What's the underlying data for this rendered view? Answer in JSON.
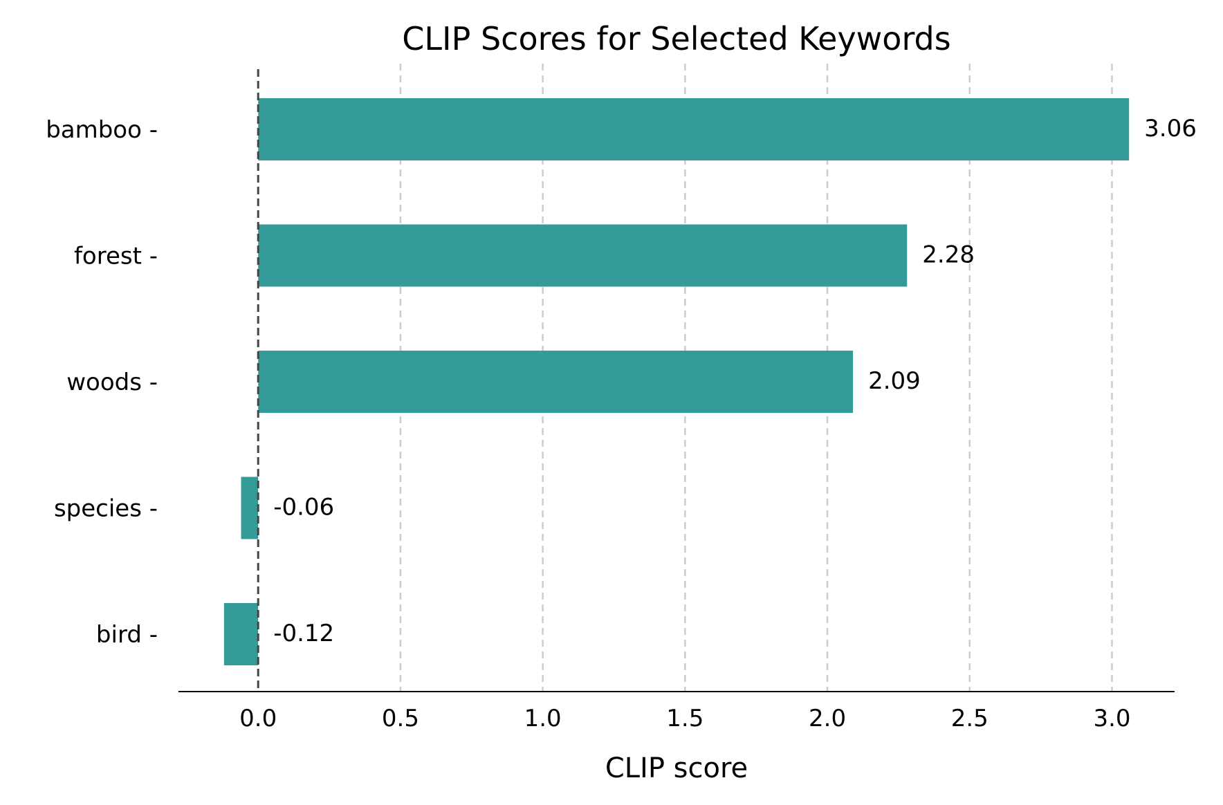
{
  "chart_data": {
    "type": "bar",
    "orientation": "horizontal",
    "title": "CLIP Scores for Selected Keywords",
    "xlabel": "CLIP score",
    "ylabel": "",
    "categories": [
      "bamboo",
      "forest",
      "woods",
      "species",
      "bird"
    ],
    "values": [
      3.06,
      2.28,
      2.09,
      -0.06,
      -0.12
    ],
    "value_labels": [
      "3.06",
      "2.28",
      "2.09",
      "-0.06",
      "-0.12"
    ],
    "category_tick_labels": [
      "bamboo -",
      "forest -",
      "woods -",
      "species -",
      "bird -"
    ],
    "xlim": [
      -0.28,
      3.22
    ],
    "xticks": [
      0.0,
      0.5,
      1.0,
      1.5,
      2.0,
      2.5,
      3.0
    ],
    "xtick_labels": [
      "0.0",
      "0.5",
      "1.0",
      "1.5",
      "2.0",
      "2.5",
      "3.0"
    ],
    "grid": "x-dashed",
    "zero_line": true,
    "legend": "none",
    "bar_color": "#359b99",
    "grid_color": "#cccccc",
    "zero_line_color": "#444444"
  }
}
